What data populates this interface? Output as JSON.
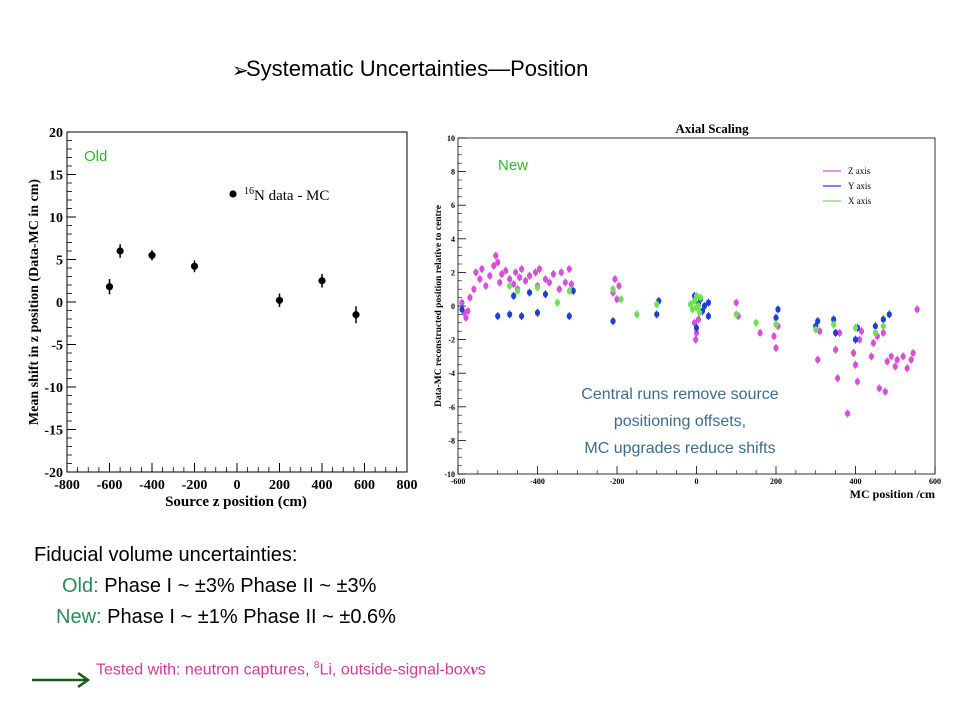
{
  "slide": {
    "title": "Systematic Uncertainties—Position",
    "bullet_icon": "arrow-bullet-icon"
  },
  "fiducial": {
    "heading": "Fiducial volume uncertainties:",
    "old_label": "Old:",
    "old_text": "Phase I ~ ±3%  Phase II ~ ±3%",
    "new_label": "New:",
    "new_text": "Phase I ~ ±1%  Phase II ~ ±0.6%"
  },
  "tested": {
    "prefix": "Tested with: neutron captures, ",
    "li_mass": "8",
    "li_rest": "Li, outside-signal-box",
    "nu": "ν",
    "suffix": "s",
    "arrow_color": "#1a5a1a"
  },
  "annotation": {
    "line1": "Central runs remove source",
    "line2": "positioning offsets,",
    "line3": "MC upgrades reduce shifts"
  },
  "chart_data": [
    {
      "type": "scatter",
      "tag": "Old",
      "title": "",
      "xlabel": "Source z position (cm)",
      "ylabel": "Mean shift in z position (Data-MC in cm)",
      "xlim": [
        -800,
        800
      ],
      "ylim": [
        -20,
        20
      ],
      "xticks": [
        -800,
        -600,
        -400,
        -200,
        0,
        200,
        400,
        600,
        800
      ],
      "yticks": [
        -20,
        -15,
        -10,
        -5,
        0,
        5,
        10,
        15,
        20
      ],
      "legend": {
        "mass": "16",
        "text": "N data - MC",
        "position": "top-right"
      },
      "series": [
        {
          "color": "#000000",
          "points": [
            {
              "x": -600,
              "y": 1.8,
              "err": 0.9
            },
            {
              "x": -550,
              "y": 6.0,
              "err": 0.8
            },
            {
              "x": -400,
              "y": 5.5,
              "err": 0.6
            },
            {
              "x": -200,
              "y": 4.2,
              "err": 0.7
            },
            {
              "x": 200,
              "y": 0.2,
              "err": 0.8
            },
            {
              "x": 400,
              "y": 2.5,
              "err": 0.8
            },
            {
              "x": 560,
              "y": -1.5,
              "err": 1.0
            }
          ]
        }
      ]
    },
    {
      "type": "scatter",
      "tag": "New",
      "title": "Axial Scaling",
      "xlabel": "MC position /cm",
      "ylabel": "Data-MC reconstructed position relative to centre",
      "xlim": [
        -600,
        600
      ],
      "ylim": [
        -10,
        10
      ],
      "xticks": [
        -600,
        -400,
        -200,
        0,
        200,
        400,
        600
      ],
      "yticks": [
        -10,
        -8,
        -6,
        -4,
        -2,
        0,
        2,
        4,
        6,
        8,
        10
      ],
      "legend_position": "top-right",
      "series": [
        {
          "name": "Z axis",
          "color": "#d94fdc",
          "points": [
            [
              -590,
              0.2
            ],
            [
              -585,
              -0.4
            ],
            [
              -580,
              -0.7
            ],
            [
              -575,
              -0.3
            ],
            [
              -570,
              0.5
            ],
            [
              -560,
              1.0
            ],
            [
              -555,
              2.0
            ],
            [
              -545,
              1.6
            ],
            [
              -540,
              2.2
            ],
            [
              -530,
              1.2
            ],
            [
              -520,
              1.8
            ],
            [
              -510,
              2.4
            ],
            [
              -505,
              3.0
            ],
            [
              -500,
              2.6
            ],
            [
              -495,
              1.4
            ],
            [
              -490,
              1.9
            ],
            [
              -480,
              2.1
            ],
            [
              -470,
              1.6
            ],
            [
              -460,
              1.3
            ],
            [
              -455,
              2.0
            ],
            [
              -450,
              1.0
            ],
            [
              -445,
              1.7
            ],
            [
              -440,
              2.2
            ],
            [
              -430,
              1.5
            ],
            [
              -420,
              1.8
            ],
            [
              -405,
              2.0
            ],
            [
              -400,
              1.2
            ],
            [
              -395,
              2.2
            ],
            [
              -380,
              1.6
            ],
            [
              -370,
              1.4
            ],
            [
              -360,
              1.9
            ],
            [
              -345,
              1.0
            ],
            [
              -340,
              2.0
            ],
            [
              -330,
              1.4
            ],
            [
              -320,
              2.2
            ],
            [
              -315,
              1.3
            ],
            [
              -210,
              0.8
            ],
            [
              -205,
              1.6
            ],
            [
              -200,
              0.4
            ],
            [
              -195,
              1.2
            ],
            [
              -5,
              -1.0
            ],
            [
              -2,
              -2.0
            ],
            [
              0,
              -1.6
            ],
            [
              5,
              -0.8
            ],
            [
              100,
              0.2
            ],
            [
              105,
              -0.6
            ],
            [
              160,
              -1.6
            ],
            [
              195,
              -1.8
            ],
            [
              200,
              -2.5
            ],
            [
              205,
              -1.2
            ],
            [
              305,
              -3.2
            ],
            [
              310,
              -1.5
            ],
            [
              350,
              -2.6
            ],
            [
              355,
              -4.3
            ],
            [
              360,
              -1.6
            ],
            [
              380,
              -6.4
            ],
            [
              395,
              -2.8
            ],
            [
              400,
              -3.5
            ],
            [
              405,
              -4.5
            ],
            [
              410,
              -2.0
            ],
            [
              415,
              -1.5
            ],
            [
              440,
              -3.0
            ],
            [
              445,
              -2.2
            ],
            [
              455,
              -1.8
            ],
            [
              460,
              -4.9
            ],
            [
              470,
              -1.6
            ],
            [
              475,
              -5.1
            ],
            [
              480,
              -3.3
            ],
            [
              490,
              -3.0
            ],
            [
              500,
              -3.6
            ],
            [
              505,
              -3.2
            ],
            [
              520,
              -3.0
            ],
            [
              530,
              -3.7
            ],
            [
              540,
              -3.2
            ],
            [
              545,
              -2.8
            ],
            [
              555,
              -0.2
            ]
          ]
        },
        {
          "name": "Y axis",
          "color": "#1f3fd6",
          "points": [
            [
              -590,
              -0.2
            ],
            [
              -500,
              -0.6
            ],
            [
              -470,
              -0.5
            ],
            [
              -460,
              0.6
            ],
            [
              -440,
              -0.6
            ],
            [
              -420,
              0.8
            ],
            [
              -400,
              -0.4
            ],
            [
              -380,
              0.7
            ],
            [
              -320,
              -0.6
            ],
            [
              -310,
              0.9
            ],
            [
              -210,
              -0.9
            ],
            [
              -100,
              -0.5
            ],
            [
              -95,
              0.3
            ],
            [
              -5,
              0.6
            ],
            [
              0,
              -1.3
            ],
            [
              5,
              0.1
            ],
            [
              10,
              0.4
            ],
            [
              15,
              -0.3
            ],
            [
              20,
              0.0
            ],
            [
              30,
              -0.6
            ],
            [
              30,
              0.2
            ],
            [
              200,
              -0.7
            ],
            [
              205,
              -0.2
            ],
            [
              300,
              -1.2
            ],
            [
              305,
              -0.9
            ],
            [
              345,
              -0.8
            ],
            [
              350,
              -1.6
            ],
            [
              400,
              -2.0
            ],
            [
              405,
              -1.3
            ],
            [
              450,
              -1.2
            ],
            [
              470,
              -0.8
            ],
            [
              485,
              -0.5
            ]
          ]
        },
        {
          "name": "X axis",
          "color": "#6ee05a",
          "points": [
            [
              -470,
              1.2
            ],
            [
              -450,
              0.9
            ],
            [
              -400,
              1.1
            ],
            [
              -350,
              0.2
            ],
            [
              -320,
              0.9
            ],
            [
              -210,
              1.0
            ],
            [
              -190,
              0.4
            ],
            [
              -150,
              -0.5
            ],
            [
              -100,
              0.1
            ],
            [
              -15,
              0.1
            ],
            [
              -10,
              -0.2
            ],
            [
              -5,
              0.3
            ],
            [
              0,
              0.6
            ],
            [
              5,
              0.0
            ],
            [
              8,
              -0.4
            ],
            [
              10,
              0.5
            ],
            [
              0,
              -0.1
            ],
            [
              100,
              -0.5
            ],
            [
              150,
              -1.0
            ],
            [
              200,
              -1.1
            ],
            [
              300,
              -1.4
            ],
            [
              345,
              -1.1
            ],
            [
              400,
              -1.3
            ],
            [
              450,
              -1.6
            ],
            [
              470,
              -1.2
            ]
          ]
        }
      ]
    }
  ]
}
